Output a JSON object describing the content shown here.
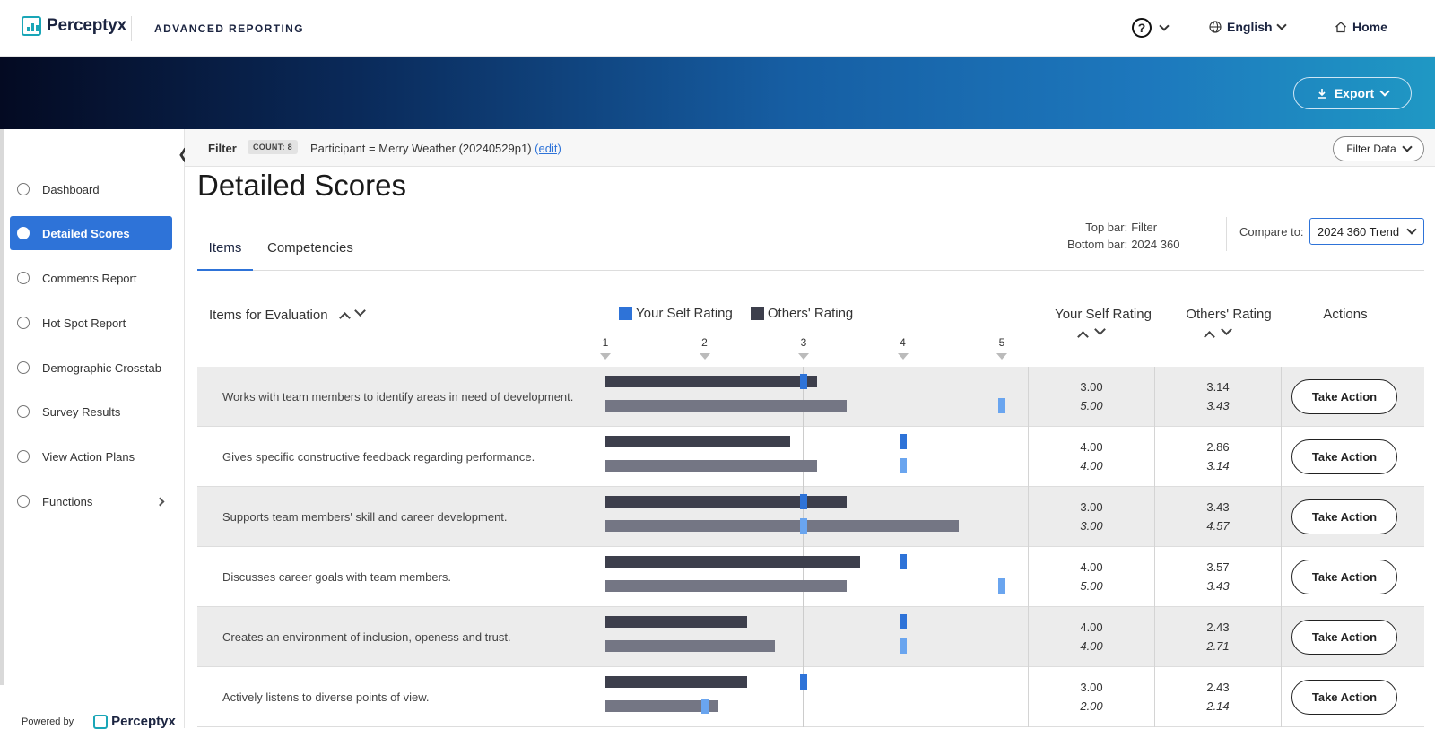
{
  "app": {
    "brand": "Perceptyx",
    "product": "ADVANCED REPORTING",
    "language": "English",
    "home": "Home",
    "help_icon": "question-circle-icon"
  },
  "banner": {
    "export_label": "Export"
  },
  "sidebar": {
    "items": [
      {
        "label": "Dashboard",
        "icon": "gauge-icon"
      },
      {
        "label": "Detailed Scores",
        "icon": "thumbs-up-icon",
        "active": true
      },
      {
        "label": "Comments Report",
        "icon": "chat-icon"
      },
      {
        "label": "Hot Spot Report",
        "icon": "target-icon"
      },
      {
        "label": "Demographic Crosstab",
        "icon": "scale-icon"
      },
      {
        "label": "Survey Results",
        "icon": "bar-list-icon"
      },
      {
        "label": "View Action Plans",
        "icon": "check-circle-icon"
      },
      {
        "label": "Functions",
        "icon": "gear-icon"
      }
    ],
    "powered_by": "Powered by",
    "powered_brand": "Perceptyx"
  },
  "filter": {
    "label": "Filter",
    "count": "COUNT: 8",
    "text": "Participant = Merry Weather (20240529p1)",
    "edit": "(edit)",
    "filter_data": "Filter Data"
  },
  "page": {
    "title": "Detailed Scores",
    "tabs": [
      "Items",
      "Competencies"
    ],
    "top_bar_label": "Top bar:",
    "top_bar_value": "Filter",
    "bottom_bar_label": "Bottom bar:",
    "bottom_bar_value": "2024 360",
    "compare_label": "Compare to:",
    "compare_value": "2024 360 Trend"
  },
  "table": {
    "items_header": "Items for Evaluation",
    "legend_self": "Your Self Rating",
    "legend_others": "Others' Rating",
    "col_self": "Your Self Rating",
    "col_others": "Others' Rating",
    "col_actions": "Actions",
    "ticks": [
      "1",
      "2",
      "3",
      "4",
      "5"
    ],
    "action_label": "Take Action",
    "colors": {
      "others_top": "#3d3f4c",
      "others_bottom": "#747684",
      "self_top": "#2e73d8",
      "self_bottom": "#6aa5ef"
    },
    "rows": [
      {
        "text": "Works with team members to identify areas in need of development.",
        "self": "3.00",
        "self_cmp": "5.00",
        "others": "3.14",
        "others_cmp": "3.43",
        "self_v": 3.0,
        "self_cmp_v": 5.0,
        "others_v": 3.14,
        "others_cmp_v": 3.43
      },
      {
        "text": "Gives specific constructive feedback regarding performance.",
        "self": "4.00",
        "self_cmp": "4.00",
        "others": "2.86",
        "others_cmp": "3.14",
        "self_v": 4.0,
        "self_cmp_v": 4.0,
        "others_v": 2.86,
        "others_cmp_v": 3.14
      },
      {
        "text": "Supports team members' skill and career development.",
        "self": "3.00",
        "self_cmp": "3.00",
        "others": "3.43",
        "others_cmp": "4.57",
        "self_v": 3.0,
        "self_cmp_v": 3.0,
        "others_v": 3.43,
        "others_cmp_v": 4.57
      },
      {
        "text": "Discusses career goals with team members.",
        "self": "4.00",
        "self_cmp": "5.00",
        "others": "3.57",
        "others_cmp": "3.43",
        "self_v": 4.0,
        "self_cmp_v": 5.0,
        "others_v": 3.57,
        "others_cmp_v": 3.43
      },
      {
        "text": "Creates an environment of inclusion, openess and trust.",
        "self": "4.00",
        "self_cmp": "4.00",
        "others": "2.43",
        "others_cmp": "2.71",
        "self_v": 4.0,
        "self_cmp_v": 4.0,
        "others_v": 2.43,
        "others_cmp_v": 2.71
      },
      {
        "text": "Actively listens to diverse points of view.",
        "self": "3.00",
        "self_cmp": "2.00",
        "others": "2.43",
        "others_cmp": "2.14",
        "self_v": 3.0,
        "self_cmp_v": 2.0,
        "others_v": 2.43,
        "others_cmp_v": 2.14
      }
    ]
  }
}
